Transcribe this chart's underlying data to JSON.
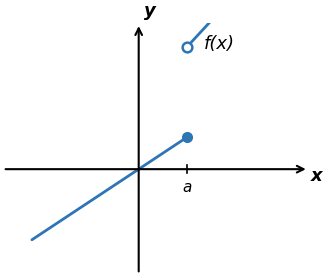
{
  "line_color": "#2e75b6",
  "line_width": 2.0,
  "marker_size": 7,
  "marker_edge_width": 1.8,
  "a": 1.0,
  "seg1_x_start": -2.2,
  "seg1_x_end": 1.0,
  "seg1_slope": 0.55,
  "seg1_intercept": 0.0,
  "seg2_x_start": 1.0,
  "seg2_x_end": 2.6,
  "seg2_slope": 0.9,
  "seg2_intercept": 1.2,
  "xlim": [
    -2.8,
    3.5
  ],
  "ylim": [
    -1.8,
    2.5
  ],
  "xlabel": "x",
  "ylabel": "y",
  "label_fx": "f(x)",
  "a_label": "a",
  "background_color": "#ffffff",
  "axis_color": "#000000",
  "text_color": "#000000",
  "fontsize_axis_label": 13,
  "fontsize_tick_label": 11,
  "fontsize_fx_label": 13
}
